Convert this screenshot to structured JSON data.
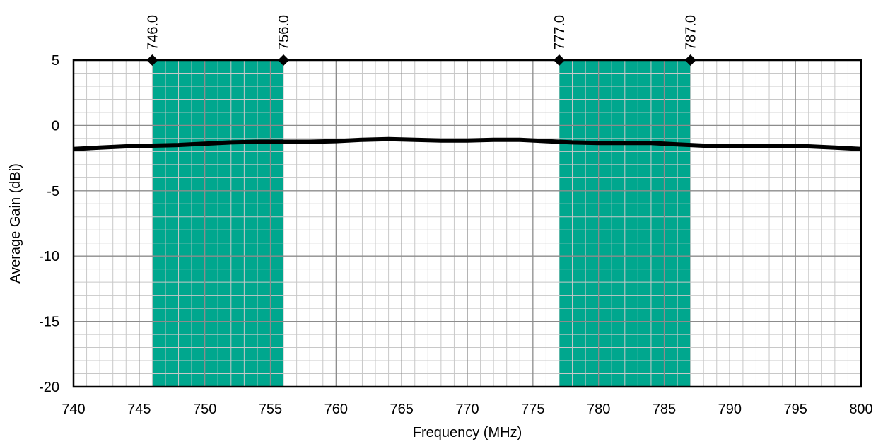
{
  "chart_data": {
    "type": "line",
    "title": "",
    "xlabel": "Frequency (MHz)",
    "ylabel": "Average Gain (dBi)",
    "xlim": [
      740,
      800
    ],
    "ylim": [
      -20,
      5
    ],
    "x_ticks": [
      740,
      745,
      750,
      755,
      760,
      765,
      770,
      775,
      780,
      785,
      790,
      795,
      800
    ],
    "y_ticks": [
      5,
      0,
      -5,
      -10,
      -15,
      -20
    ],
    "grid": true,
    "minor_grid": true,
    "legend": "none",
    "bands": [
      {
        "start": 746.0,
        "end": 756.0,
        "start_label": "746.0",
        "end_label": "756.0"
      },
      {
        "start": 777.0,
        "end": 787.0,
        "start_label": "777.0",
        "end_label": "787.0"
      }
    ],
    "series": [
      {
        "x": [
          740,
          742,
          744,
          746,
          748,
          750,
          752,
          754,
          756,
          758,
          760,
          762,
          764,
          766,
          768,
          770,
          772,
          774,
          776,
          778,
          780,
          782,
          784,
          786,
          788,
          790,
          792,
          794,
          796,
          798,
          800
        ],
        "y": [
          -1.8,
          -1.7,
          -1.6,
          -1.55,
          -1.5,
          -1.4,
          -1.3,
          -1.25,
          -1.25,
          -1.25,
          -1.2,
          -1.1,
          -1.05,
          -1.1,
          -1.15,
          -1.15,
          -1.1,
          -1.1,
          -1.2,
          -1.3,
          -1.35,
          -1.35,
          -1.35,
          -1.45,
          -1.55,
          -1.6,
          -1.6,
          -1.55,
          -1.6,
          -1.7,
          -1.8
        ]
      }
    ],
    "colors": {
      "band": "#00a78e",
      "line": "#000000",
      "major_grid": "#8c8c8c",
      "minor_grid": "#c8c8c8",
      "frame": "#000000"
    }
  }
}
